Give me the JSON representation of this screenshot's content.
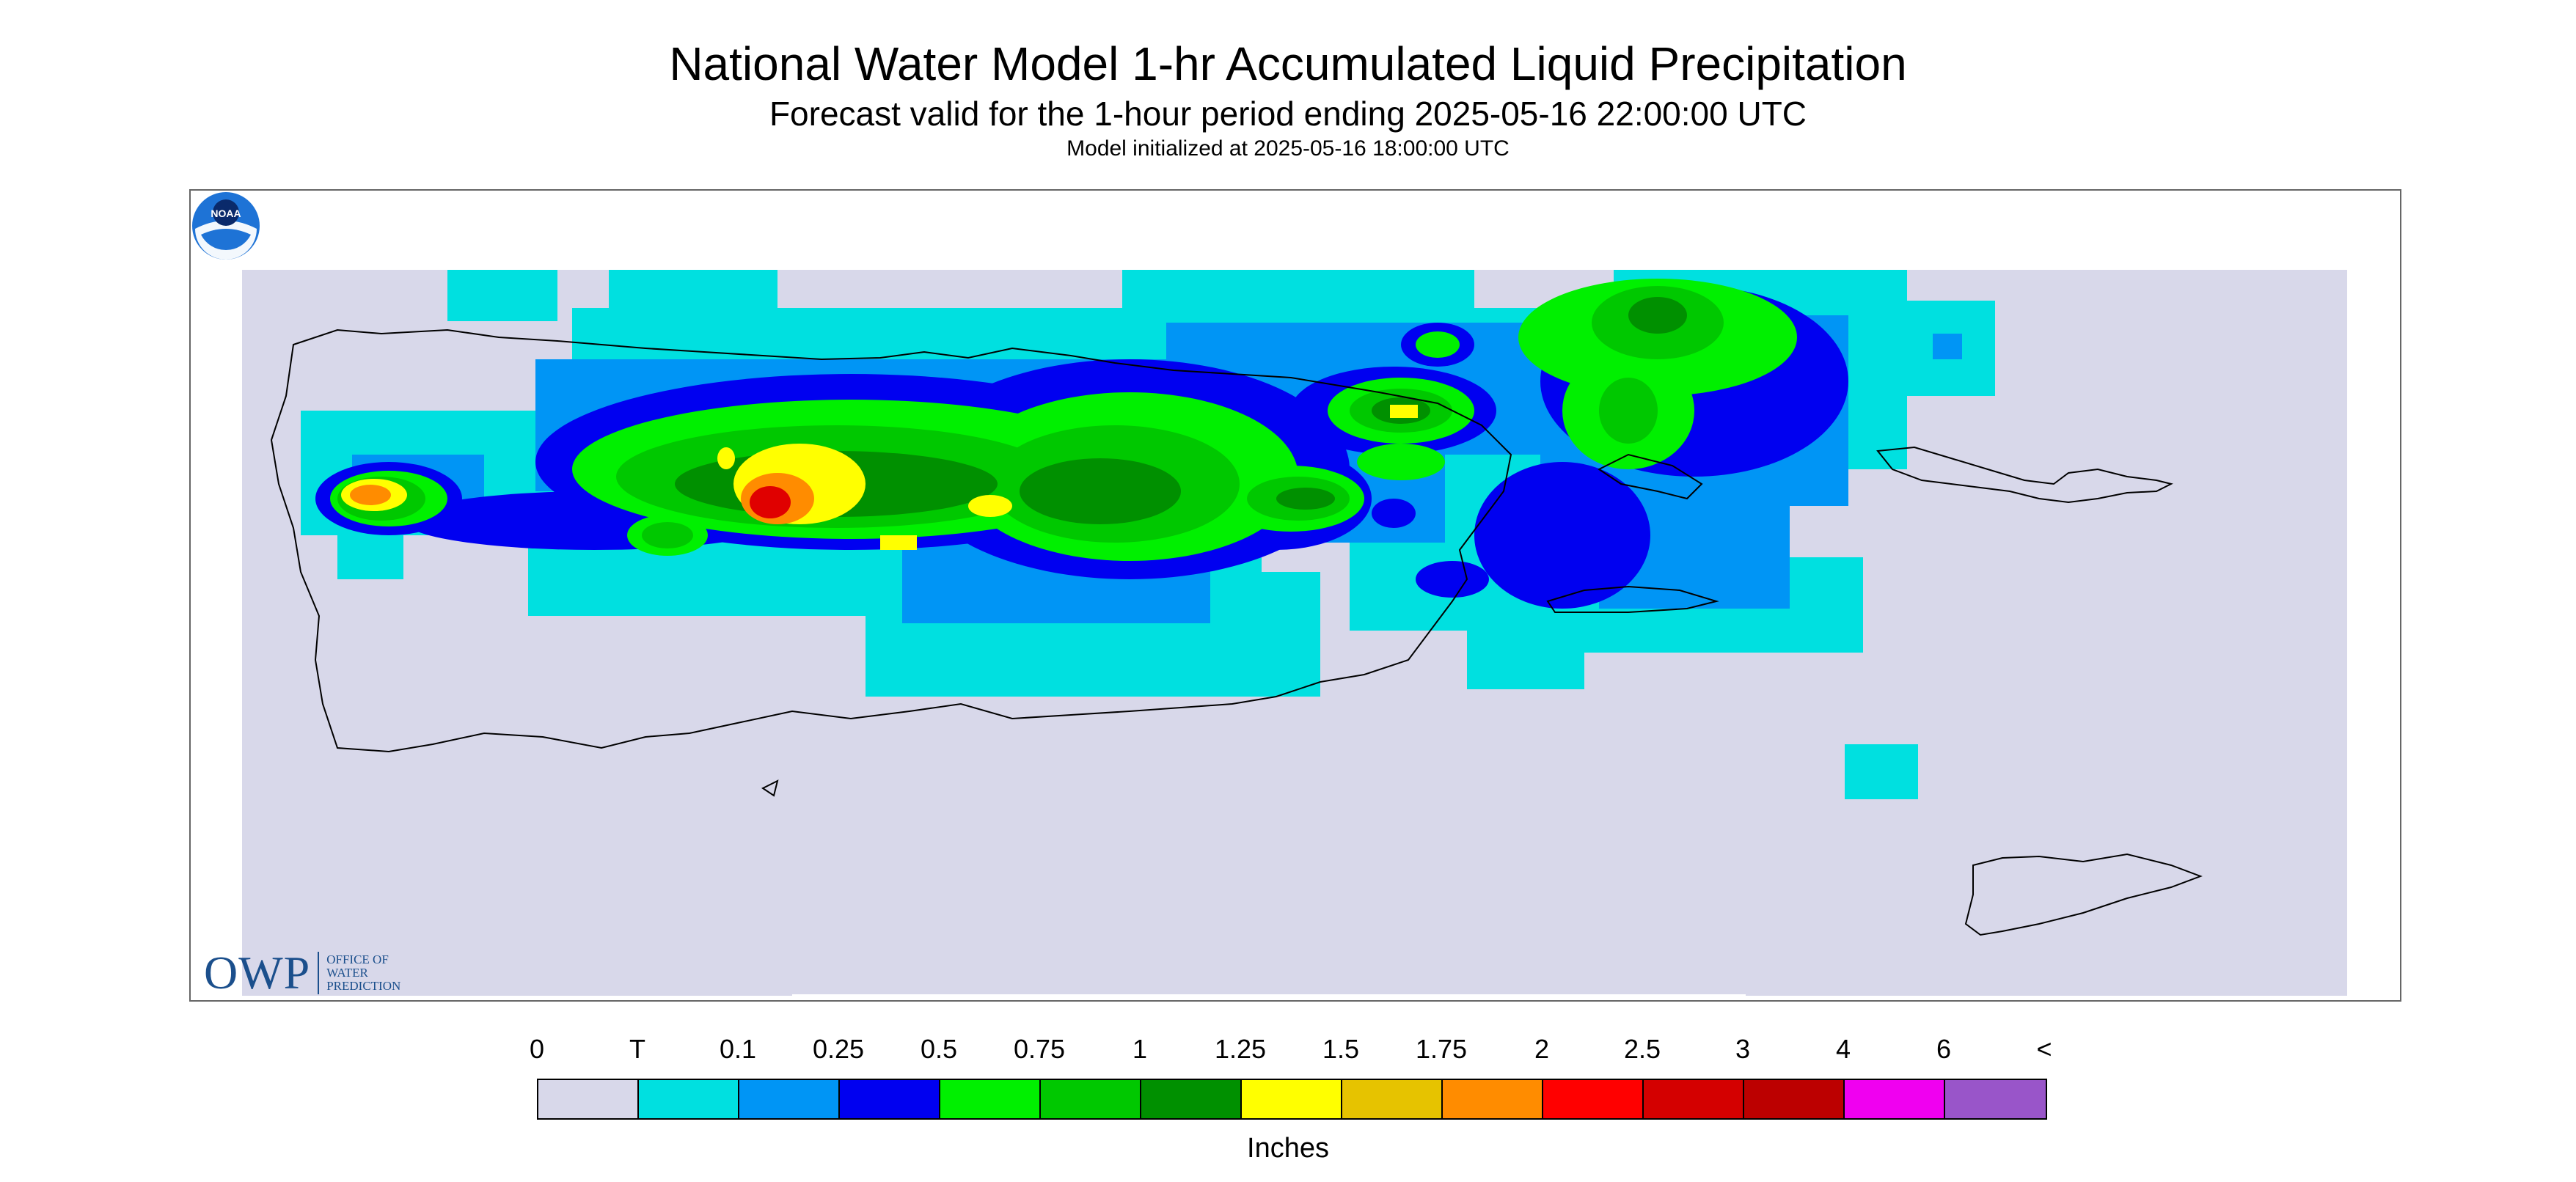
{
  "header": {
    "title": "National Water Model 1-hr Accumulated Liquid Precipitation",
    "subtitle": "Forecast valid for the 1-hour period ending 2025-05-16 22:00:00 UTC",
    "init": "Model initialized at 2025-05-16 18:00:00 UTC"
  },
  "map": {
    "region": "Puerto Rico and U.S. Virgin Islands",
    "background_color": "#d8d8ea",
    "outline_color": "#000000"
  },
  "owp_logo": {
    "letters": "OWP",
    "line1": "OFFICE OF",
    "line2": "WATER",
    "line3": "PREDICTION",
    "color": "#1b4f8c"
  },
  "noaa_logo": {
    "text": "NOAA"
  },
  "legend": {
    "labels": [
      "0",
      "T",
      "0.1",
      "0.25",
      "0.5",
      "0.75",
      "1",
      "1.25",
      "1.5",
      "1.75",
      "2",
      "2.5",
      "3",
      "4",
      "6",
      "<"
    ],
    "colors": [
      "#d8d8ea",
      "#00e0e0",
      "#0095f5",
      "#0000f0",
      "#00f000",
      "#00c800",
      "#009000",
      "#ffff00",
      "#e6c300",
      "#ff8c00",
      "#ff0000",
      "#d40000",
      "#bc0000",
      "#f000f0",
      "#9955c9"
    ],
    "units": "Inches"
  }
}
